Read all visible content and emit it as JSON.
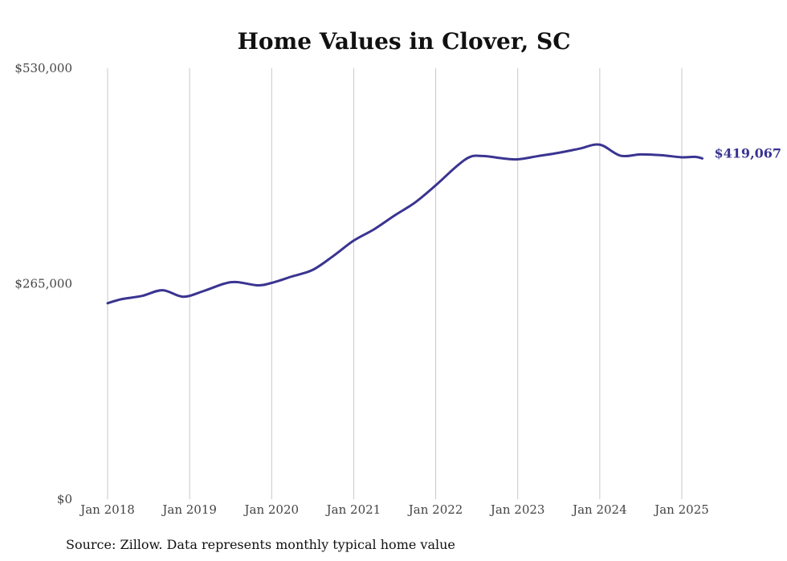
{
  "chart_data": {
    "type": "line",
    "title": "Home Values in Clover, SC",
    "xlabel": "",
    "ylabel": "",
    "ylim": [
      0,
      530000
    ],
    "y_ticks": [
      {
        "value": 0,
        "label": "$0"
      },
      {
        "value": 265000,
        "label": "$265,000"
      },
      {
        "value": 530000,
        "label": "$530,000"
      }
    ],
    "x_ticks": [
      {
        "value": 2018,
        "label": "Jan 2018"
      },
      {
        "value": 2019,
        "label": "Jan 2019"
      },
      {
        "value": 2020,
        "label": "Jan 2020"
      },
      {
        "value": 2021,
        "label": "Jan 2021"
      },
      {
        "value": 2022,
        "label": "Jan 2022"
      },
      {
        "value": 2023,
        "label": "Jan 2023"
      },
      {
        "value": 2024,
        "label": "Jan 2024"
      },
      {
        "value": 2025,
        "label": "Jan 2025"
      }
    ],
    "xlim": [
      2018,
      2025.25
    ],
    "grid": {
      "vertical": true,
      "horizontal": false
    },
    "line_color": "#3a3491",
    "series": [
      {
        "x": [
          2018.0,
          2018.17,
          2018.42,
          2018.67,
          2018.92,
          2019.17,
          2019.42,
          2019.58,
          2019.83,
          2020.0,
          2020.25,
          2020.5,
          2020.75,
          2021.0,
          2021.25,
          2021.5,
          2021.75,
          2022.0,
          2022.25,
          2022.42,
          2022.58,
          2022.83,
          2023.0,
          2023.25,
          2023.5,
          2023.75,
          2024.0,
          2024.25,
          2024.5,
          2024.75,
          2025.0,
          2025.17,
          2025.25
        ],
        "y": [
          241000,
          246000,
          250000,
          257000,
          249000,
          256000,
          265000,
          267000,
          263000,
          266000,
          274000,
          282000,
          299000,
          318000,
          332000,
          349000,
          365000,
          386000,
          409000,
          421000,
          422000,
          419000,
          418000,
          422000,
          426000,
          431000,
          436000,
          422500,
          424000,
          423000,
          420500,
          421000,
          419067
        ]
      }
    ],
    "end_label": "$419,067",
    "source": "Source: Zillow. Data represents monthly typical home value"
  }
}
